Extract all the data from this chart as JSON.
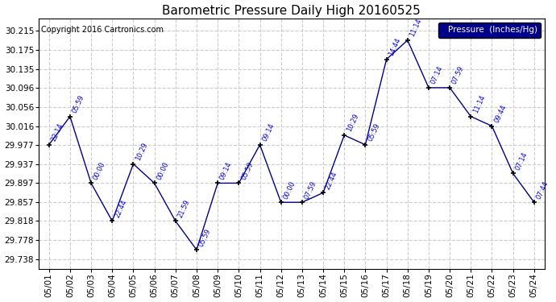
{
  "title": "Barometric Pressure Daily High 20160525",
  "copyright": "Copyright 2016 Cartronics.com",
  "legend_label": "Pressure  (Inches/Hg)",
  "background_color": "#ffffff",
  "grid_color": "#cccccc",
  "line_color": "#00008B",
  "text_color": "#0000cc",
  "dates": [
    "05/01",
    "05/02",
    "05/03",
    "05/04",
    "05/05",
    "05/06",
    "05/07",
    "05/08",
    "05/09",
    "05/10",
    "05/11",
    "05/12",
    "05/13",
    "05/14",
    "05/15",
    "05/16",
    "05/17",
    "05/18",
    "05/19",
    "05/20",
    "05/21",
    "05/22",
    "05/23",
    "05/24"
  ],
  "values": [
    29.977,
    30.036,
    29.897,
    29.818,
    29.937,
    29.897,
    29.818,
    29.758,
    29.897,
    29.897,
    29.977,
    29.857,
    29.857,
    29.877,
    29.997,
    29.977,
    30.155,
    30.195,
    30.096,
    30.096,
    30.036,
    30.016,
    29.917,
    29.857
  ],
  "time_labels": [
    "22:14",
    "05:59",
    "00:00",
    "22:44",
    "10:29",
    "00:00",
    "21:59",
    "05:59",
    "09:14",
    "05:59",
    "09:14",
    "00:00",
    "07:59",
    "22:44",
    "10:29",
    "05:59",
    "14:44",
    "11:14",
    "07:14",
    "07:59",
    "11:14",
    "09:44",
    "07:14",
    "07:44"
  ],
  "yticks": [
    29.738,
    29.778,
    29.818,
    29.857,
    29.897,
    29.937,
    29.977,
    30.016,
    30.056,
    30.096,
    30.135,
    30.175,
    30.215
  ],
  "ylim_min": 29.718,
  "ylim_max": 30.24
}
